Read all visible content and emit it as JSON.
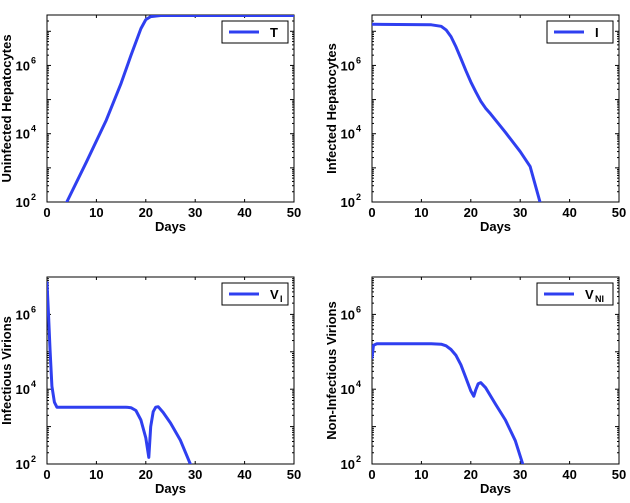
{
  "chart_data": [
    {
      "type": "line",
      "xlabel": "Days",
      "ylabel": "Uninfected Hepatocytes",
      "xlim": [
        0,
        50
      ],
      "ylim": [
        100,
        30000000
      ],
      "yscale": "log",
      "legend_location": "top-right",
      "xticks": [
        0,
        10,
        20,
        30,
        40,
        50
      ],
      "yticks": [
        {
          "base": "10",
          "exp": "2"
        },
        {
          "base": "10",
          "exp": "4"
        },
        {
          "base": "10",
          "exp": "6"
        }
      ],
      "series": [
        {
          "name": "T",
          "sub": "",
          "color": "#2f3ff0",
          "points": [
            [
              4,
              100
            ],
            [
              8,
              1500
            ],
            [
              12,
              25000
            ],
            [
              15,
              300000
            ],
            [
              17,
              2000000
            ],
            [
              19,
              12000000
            ],
            [
              20,
              22000000
            ],
            [
              21,
              27000000
            ],
            [
              23,
              29000000
            ],
            [
              50,
              29000000
            ]
          ]
        }
      ]
    },
    {
      "type": "line",
      "xlabel": "Days",
      "ylabel": "Infected Hepatocytes",
      "xlim": [
        0,
        50
      ],
      "ylim": [
        100,
        30000000
      ],
      "yscale": "log",
      "legend_location": "top-right",
      "xticks": [
        0,
        10,
        20,
        30,
        40,
        50
      ],
      "yticks": [
        {
          "base": "10",
          "exp": "2"
        },
        {
          "base": "10",
          "exp": "4"
        },
        {
          "base": "10",
          "exp": "6"
        }
      ],
      "series": [
        {
          "name": "I",
          "sub": "",
          "color": "#2f3ff0",
          "points": [
            [
              0,
              16000000
            ],
            [
              12,
              15500000
            ],
            [
              14,
              14000000
            ],
            [
              15,
              11000000
            ],
            [
              16,
              7000000
            ],
            [
              17,
              3500000
            ],
            [
              18,
              1600000
            ],
            [
              19,
              700000
            ],
            [
              20,
              330000
            ],
            [
              21,
              170000
            ],
            [
              22,
              90000
            ],
            [
              23,
              56000
            ],
            [
              24,
              38000
            ],
            [
              27,
              11000
            ],
            [
              30,
              3000
            ],
            [
              32,
              1100
            ],
            [
              34,
              100
            ]
          ]
        }
      ]
    },
    {
      "type": "line",
      "xlabel": "Days",
      "ylabel": "Infectious Virions",
      "xlim": [
        0,
        50
      ],
      "ylim": [
        100,
        10000000
      ],
      "yscale": "log",
      "legend_location": "top-right",
      "xticks": [
        0,
        10,
        20,
        30,
        40,
        50
      ],
      "yticks": [
        {
          "base": "10",
          "exp": "2"
        },
        {
          "base": "10",
          "exp": "4"
        },
        {
          "base": "10",
          "exp": "6"
        }
      ],
      "series": [
        {
          "name": "V",
          "sub": "I",
          "color": "#2f3ff0",
          "points": [
            [
              0,
              7000000
            ],
            [
              0.3,
              1000000
            ],
            [
              0.6,
              120000
            ],
            [
              1,
              12000
            ],
            [
              1.5,
              4500
            ],
            [
              2,
              3300
            ],
            [
              5,
              3300
            ],
            [
              16,
              3300
            ],
            [
              17,
              3200
            ],
            [
              18,
              2700
            ],
            [
              19,
              1500
            ],
            [
              20,
              500
            ],
            [
              20.6,
              150
            ],
            [
              21,
              1000
            ],
            [
              21.5,
              2500
            ],
            [
              22,
              3300
            ],
            [
              22.5,
              3400
            ],
            [
              23.5,
              2400
            ],
            [
              25,
              1250
            ],
            [
              27,
              430
            ],
            [
              29,
              100
            ]
          ]
        }
      ]
    },
    {
      "type": "line",
      "xlabel": "Days",
      "ylabel": "Non-Infectious Virions",
      "xlim": [
        0,
        50
      ],
      "ylim": [
        100,
        10000000
      ],
      "yscale": "log",
      "legend_location": "top-right",
      "xticks": [
        0,
        10,
        20,
        30,
        40,
        50
      ],
      "yticks": [
        {
          "base": "10",
          "exp": "2"
        },
        {
          "base": "10",
          "exp": "4"
        },
        {
          "base": "10",
          "exp": "6"
        }
      ],
      "series": [
        {
          "name": "V",
          "sub": "NI",
          "color": "#2f3ff0",
          "points": [
            [
              0,
              70000
            ],
            [
              0.3,
              150000
            ],
            [
              1,
              165000
            ],
            [
              12,
              165000
            ],
            [
              14,
              160000
            ],
            [
              15,
              145000
            ],
            [
              16,
              115000
            ],
            [
              17,
              80000
            ],
            [
              18,
              45000
            ],
            [
              19,
              20000
            ],
            [
              20,
              9000
            ],
            [
              20.6,
              6500
            ],
            [
              21,
              9500
            ],
            [
              21.5,
              14000
            ],
            [
              22,
              15000
            ],
            [
              23,
              11000
            ],
            [
              25,
              4000
            ],
            [
              27,
              1500
            ],
            [
              29,
              420
            ],
            [
              30.5,
              100
            ]
          ]
        }
      ]
    }
  ]
}
